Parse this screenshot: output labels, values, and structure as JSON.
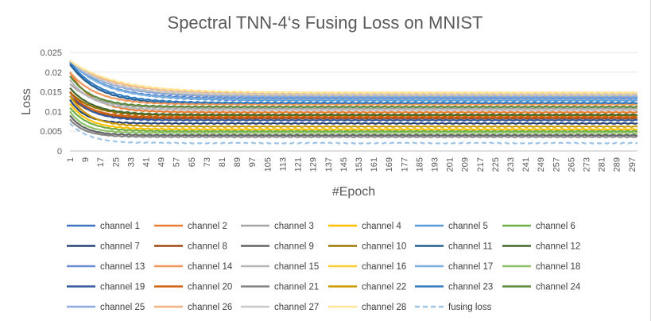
{
  "chart_data": {
    "type": "line",
    "title": "Spectral TNN-4‘s Fusing Loss on MNIST",
    "xlabel": "#Epoch",
    "ylabel": "Loss",
    "ylim": [
      0,
      0.025
    ],
    "y_ticks": [
      "0",
      "0.005",
      "0.01",
      "0.015",
      "0.02",
      "0.025"
    ],
    "x_tick_labels": [
      "1",
      "9",
      "17",
      "25",
      "33",
      "41",
      "49",
      "57",
      "65",
      "73",
      "81",
      "89",
      "97",
      "105",
      "113",
      "121",
      "129",
      "137",
      "145",
      "153",
      "161",
      "169",
      "177",
      "185",
      "193",
      "201",
      "209",
      "217",
      "225",
      "233",
      "241",
      "249",
      "257",
      "265",
      "273",
      "281",
      "289",
      "297"
    ],
    "epochs": 300,
    "grid": "horizontal",
    "legend_position": "bottom",
    "series": [
      {
        "name": "channel 1",
        "color": "#4472C4",
        "start": 0.0228,
        "end": 0.0133,
        "tau": 18
      },
      {
        "name": "channel 2",
        "color": "#ED7D31",
        "start": 0.02,
        "end": 0.0098,
        "tau": 12
      },
      {
        "name": "channel 3",
        "color": "#A5A5A5",
        "start": 0.017,
        "end": 0.0108,
        "tau": 14
      },
      {
        "name": "channel 4",
        "color": "#FFC000",
        "start": 0.012,
        "end": 0.0055,
        "tau": 10
      },
      {
        "name": "channel 5",
        "color": "#5B9BD5",
        "start": 0.0229,
        "end": 0.0128,
        "tau": 20
      },
      {
        "name": "channel 6",
        "color": "#70AD47",
        "start": 0.011,
        "end": 0.005,
        "tau": 10
      },
      {
        "name": "channel 7",
        "color": "#264478",
        "start": 0.013,
        "end": 0.007,
        "tau": 8
      },
      {
        "name": "channel 8",
        "color": "#9E480E",
        "start": 0.014,
        "end": 0.0083,
        "tau": 10
      },
      {
        "name": "channel 9",
        "color": "#636363",
        "start": 0.009,
        "end": 0.004,
        "tau": 8
      },
      {
        "name": "channel 10",
        "color": "#997300",
        "start": 0.015,
        "end": 0.009,
        "tau": 12
      },
      {
        "name": "channel 11",
        "color": "#255E91",
        "start": 0.022,
        "end": 0.012,
        "tau": 15
      },
      {
        "name": "channel 12",
        "color": "#43682B",
        "start": 0.016,
        "end": 0.0092,
        "tau": 12
      },
      {
        "name": "channel 13",
        "color": "#698ED0",
        "start": 0.0229,
        "end": 0.0136,
        "tau": 22
      },
      {
        "name": "channel 14",
        "color": "#F1975A",
        "start": 0.02,
        "end": 0.0118,
        "tau": 14
      },
      {
        "name": "channel 15",
        "color": "#B7B7B7",
        "start": 0.018,
        "end": 0.0104,
        "tau": 12
      },
      {
        "name": "channel 16",
        "color": "#FFCD33",
        "start": 0.0229,
        "end": 0.0141,
        "tau": 20
      },
      {
        "name": "channel 17",
        "color": "#7CAFDD",
        "start": 0.0229,
        "end": 0.0131,
        "tau": 18
      },
      {
        "name": "channel 18",
        "color": "#8CC168",
        "start": 0.01,
        "end": 0.0046,
        "tau": 8
      },
      {
        "name": "channel 19",
        "color": "#335AA1",
        "start": 0.015,
        "end": 0.0078,
        "tau": 10
      },
      {
        "name": "channel 20",
        "color": "#D26012",
        "start": 0.015,
        "end": 0.0086,
        "tau": 10
      },
      {
        "name": "channel 21",
        "color": "#848484",
        "start": 0.008,
        "end": 0.0036,
        "tau": 8
      },
      {
        "name": "channel 22",
        "color": "#CC9A00",
        "start": 0.014,
        "end": 0.0062,
        "tau": 10
      },
      {
        "name": "channel 23",
        "color": "#327DC2",
        "start": 0.0225,
        "end": 0.0122,
        "tau": 16
      },
      {
        "name": "channel 24",
        "color": "#5A8A39",
        "start": 0.019,
        "end": 0.0112,
        "tau": 12
      },
      {
        "name": "channel 25",
        "color": "#8FAADC",
        "start": 0.0229,
        "end": 0.0138,
        "tau": 20
      },
      {
        "name": "channel 26",
        "color": "#F4B183",
        "start": 0.0229,
        "end": 0.0146,
        "tau": 22
      },
      {
        "name": "channel 27",
        "color": "#C9C9C9",
        "start": 0.0229,
        "end": 0.0143,
        "tau": 20
      },
      {
        "name": "channel 28",
        "color": "#FFE699",
        "start": 0.0229,
        "end": 0.0148,
        "tau": 24
      },
      {
        "name": "fusing loss",
        "color": "#9DC3E6",
        "dashed": true,
        "start": 0.007,
        "end": 0.002,
        "tau": 10
      }
    ]
  }
}
